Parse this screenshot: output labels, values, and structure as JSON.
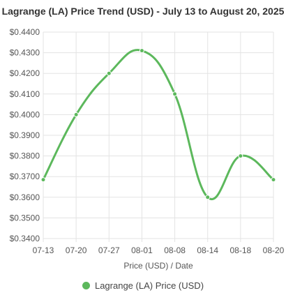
{
  "chart_data": {
    "type": "line",
    "title": "Lagrange (LA) Price Trend (USD) - July 13 to August 20, 2025",
    "xlabel": "Price (USD) / Date",
    "ylabel": "",
    "categories": [
      "07-13",
      "07-20",
      "07-27",
      "08-01",
      "08-08",
      "08-14",
      "08-18",
      "08-20"
    ],
    "series": [
      {
        "name": "Lagrange (LA) Price (USD)",
        "values": [
          0.3685,
          0.4,
          0.42,
          0.431,
          0.41,
          0.36,
          0.38,
          0.3685
        ],
        "color": "#5cb85c"
      }
    ],
    "ylim": [
      0.34,
      0.44
    ],
    "yticks": [
      "$0.3400",
      "$0.3500",
      "$0.3600",
      "$0.3700",
      "$0.3800",
      "$0.3900",
      "$0.4000",
      "$0.4100",
      "$0.4200",
      "$0.4300",
      "$0.4400"
    ],
    "grid": true,
    "legend_position": "bottom"
  }
}
